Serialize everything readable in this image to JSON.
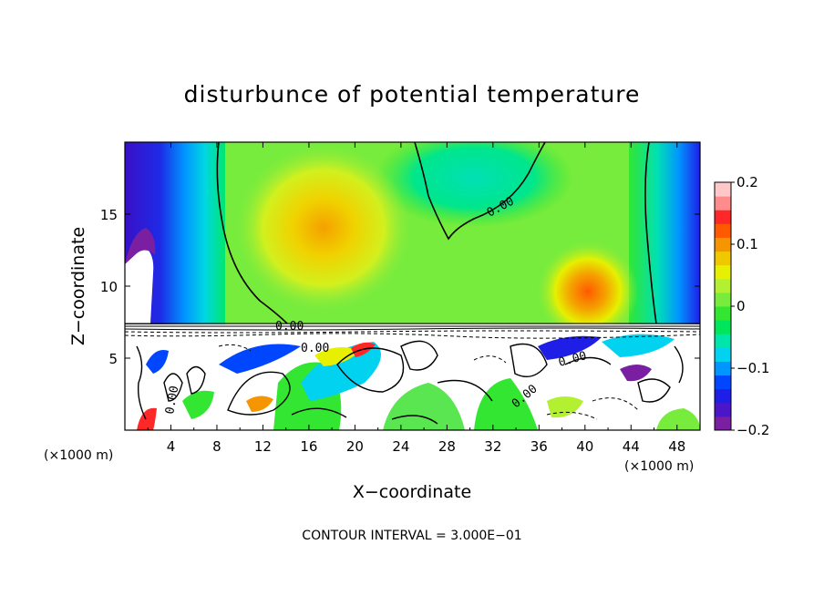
{
  "chart_data": {
    "type": "heatmap",
    "title": "disturbunce of potential temperature",
    "xlabel": "X−coordinate",
    "ylabel": "Z−coordinate",
    "x_unit_left": "(×1000 m)",
    "x_unit_right": "(×1000 m)",
    "xlim": [
      0,
      50
    ],
    "ylim": [
      0,
      20
    ],
    "x_ticks": [
      "4",
      "8",
      "12",
      "16",
      "20",
      "24",
      "28",
      "32",
      "36",
      "40",
      "44",
      "48"
    ],
    "x_tick_values": [
      4,
      8,
      12,
      16,
      20,
      24,
      28,
      32,
      36,
      40,
      44,
      48
    ],
    "y_ticks": [
      "5",
      "10",
      "15"
    ],
    "y_tick_values": [
      5,
      10,
      15
    ],
    "colorbar": {
      "range": [
        -0.2,
        0.2
      ],
      "tick_labels": [
        "0.2",
        "0.1",
        "0",
        "−0.1",
        "−0.2"
      ],
      "tick_values": [
        0.2,
        0.1,
        0,
        -0.1,
        -0.2
      ],
      "colors": [
        "#7b1fa2",
        "#4b16c8",
        "#1e1ee6",
        "#0046ff",
        "#0096ff",
        "#00d2f0",
        "#00e6aa",
        "#00e65a",
        "#32e632",
        "#78ec3c",
        "#b4f032",
        "#e6f000",
        "#f0c800",
        "#f59600",
        "#ff5a00",
        "#ff2828",
        "#ff8c8c",
        "#ffc8c8"
      ]
    },
    "contour_labels": [
      "0.00",
      "0.00",
      "0.00",
      "0.00",
      "0.00",
      "0.00"
    ],
    "footer": "CONTOUR INTERVAL = 3.000E−01"
  }
}
